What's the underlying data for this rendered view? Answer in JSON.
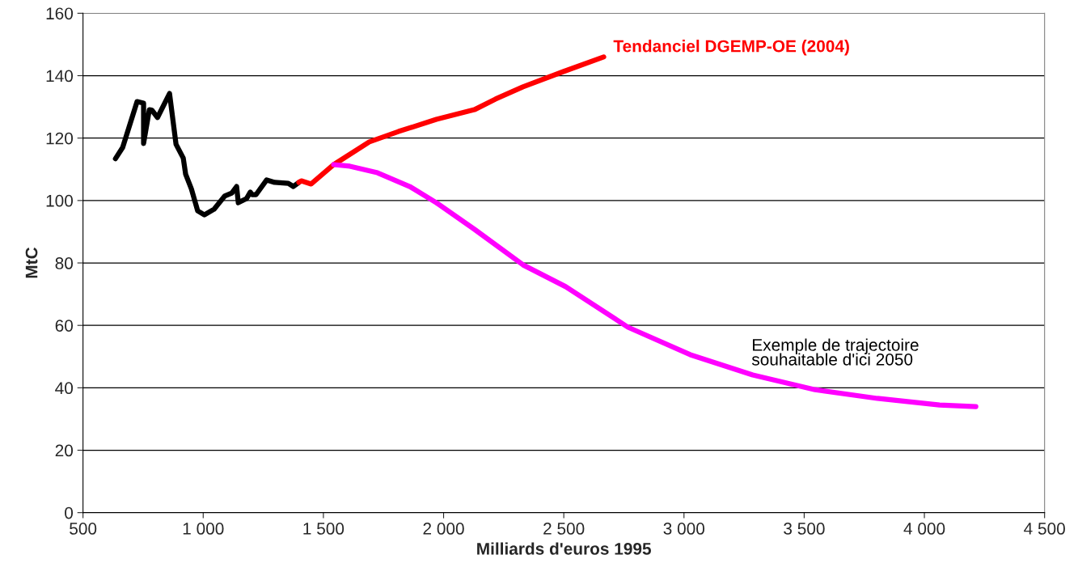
{
  "chart_data": {
    "type": "line",
    "xlabel": "Milliards d'euros 1995",
    "ylabel": "MtC",
    "xlim": [
      500,
      4500
    ],
    "xticks": [
      500,
      {
        "value": 1000,
        "label": "1 000"
      },
      {
        "value": 1500,
        "label": "1 500"
      },
      {
        "value": 2000,
        "label": "2 000"
      },
      {
        "value": 2500,
        "label": "2 500"
      },
      {
        "value": 3000,
        "label": "3 000"
      },
      {
        "value": 3500,
        "label": "3 500"
      },
      {
        "value": 4000,
        "label": "4 000"
      },
      {
        "value": 4500,
        "label": "4 500"
      }
    ],
    "ylim": [
      0,
      160
    ],
    "yticks": [
      0,
      20,
      40,
      60,
      80,
      100,
      120,
      140,
      160
    ],
    "grid": "y",
    "legend": false,
    "series": [
      {
        "color": "#000000",
        "x": [
          635,
          665,
          725,
          752,
          752,
          776,
          786,
          810,
          860,
          887,
          917,
          927,
          951,
          977,
          1005,
          1045,
          1089,
          1119,
          1139,
          1146,
          1180,
          1196,
          1203,
          1220,
          1264,
          1297,
          1354,
          1375,
          1398
        ],
        "values": [
          113.4,
          117,
          131.7,
          131.2,
          118.3,
          129.1,
          129,
          126.6,
          134.3,
          118,
          113.6,
          108.4,
          103.7,
          96.7,
          95.4,
          97.2,
          101.4,
          102.4,
          104.5,
          99.3,
          100.6,
          102.7,
          101.9,
          101.9,
          106.6,
          105.8,
          105.5,
          104.5,
          105.8
        ]
      },
      {
        "name": "Tendanciel DGEMP-OE (2004)",
        "color": "#ff0000",
        "x": [
          1398,
          1408,
          1449,
          1543,
          1691,
          1812,
          1970,
          2128,
          2216,
          2330,
          2498,
          2666
        ],
        "values": [
          105.8,
          106.3,
          105.3,
          111.5,
          118.8,
          122.1,
          126,
          129.1,
          132.5,
          136.4,
          141.3,
          146
        ]
      },
      {
        "name": "Exemple de trajectoire\nsouhaitable d'ici 2050",
        "color": "#ff00ff",
        "x": [
          1543,
          1610,
          1725,
          1859,
          1970,
          2128,
          2330,
          2508,
          2767,
          3026,
          3286,
          3545,
          3804,
          4063,
          4214
        ],
        "values": [
          111.5,
          111,
          108.9,
          104.5,
          99.3,
          90.8,
          79.4,
          72.4,
          59.4,
          50.6,
          44.1,
          39.4,
          36.6,
          34.5,
          34
        ]
      }
    ]
  }
}
